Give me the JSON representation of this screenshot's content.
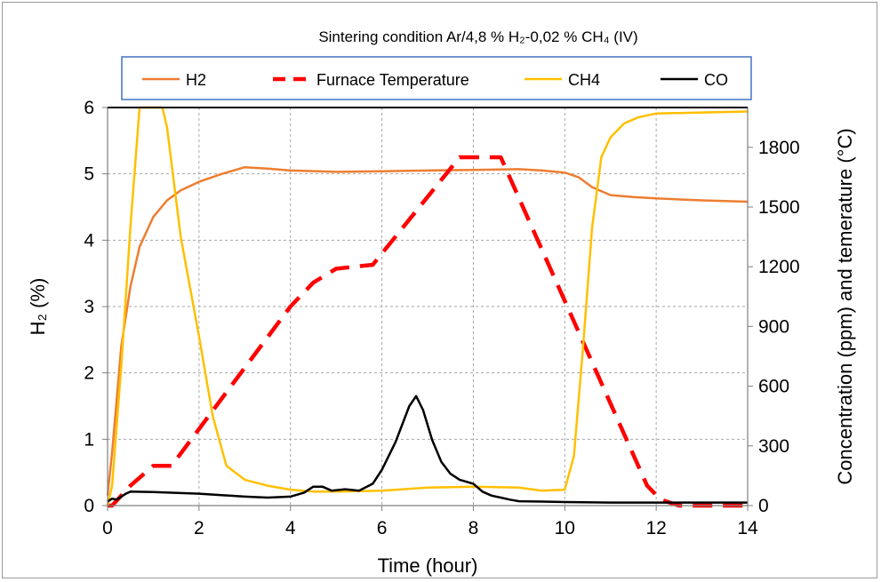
{
  "chart_data": {
    "type": "line",
    "title": "Sintering condition Ar/4,8 % H₂-0,02 % CH₄ (IV)",
    "xlabel": "Time (hour)",
    "ylabel_left": "H₂ (%)",
    "ylabel_right": "Concentration (ppm) and temerature (°C)",
    "xlim": [
      0,
      14
    ],
    "ylim_left": [
      0,
      6
    ],
    "ylim_right": [
      0,
      2000
    ],
    "xticks": [
      0,
      2,
      4,
      6,
      8,
      10,
      12,
      14
    ],
    "yticks_left": [
      0,
      1,
      2,
      3,
      4,
      5,
      6
    ],
    "yticks_right": [
      0,
      300,
      600,
      900,
      1200,
      1500,
      1800
    ],
    "grid": true,
    "legend_position": "top",
    "series": [
      {
        "name": "H2",
        "axis": "left",
        "color": "#ED7D31",
        "style": "solid",
        "x": [
          0,
          0.1,
          0.2,
          0.3,
          0.5,
          0.7,
          1.0,
          1.3,
          1.6,
          2.0,
          2.5,
          3.0,
          3.5,
          4.0,
          5.0,
          6.0,
          7.0,
          8.0,
          9.0,
          9.5,
          10.0,
          10.3,
          10.6,
          11.0,
          11.5,
          12.0,
          13.0,
          14.0
        ],
        "y": [
          0.15,
          0.8,
          1.6,
          2.4,
          3.3,
          3.9,
          4.35,
          4.6,
          4.75,
          4.88,
          5.0,
          5.1,
          5.08,
          5.05,
          5.03,
          5.04,
          5.05,
          5.06,
          5.07,
          5.05,
          5.02,
          4.95,
          4.8,
          4.68,
          4.65,
          4.63,
          4.6,
          4.58
        ]
      },
      {
        "name": "Furnace Temperature",
        "axis": "right",
        "color": "#FF0000",
        "style": "dashed",
        "x": [
          0,
          0.1,
          0.5,
          1.0,
          1.4,
          4.0,
          4.5,
          5.0,
          5.8,
          7.7,
          8.6,
          11.8,
          12.1,
          12.5,
          14.0
        ],
        "y": [
          0,
          0,
          100,
          200,
          200,
          1000,
          1120,
          1190,
          1210,
          1750,
          1750,
          100,
          30,
          0,
          0
        ]
      },
      {
        "name": "CH4",
        "axis": "right",
        "color": "#FFC000",
        "style": "solid",
        "x": [
          0,
          0.1,
          0.3,
          0.5,
          0.7,
          0.8,
          1.2,
          1.3,
          1.6,
          2.0,
          2.3,
          2.6,
          3.0,
          3.5,
          4.0,
          4.5,
          5.0,
          6.0,
          7.0,
          8.0,
          9.0,
          9.5,
          10.0,
          10.2,
          10.4,
          10.6,
          10.8,
          11.0,
          11.3,
          11.6,
          12.0,
          13.0,
          14.0
        ],
        "y": [
          0,
          100,
          700,
          1400,
          2000,
          2000,
          2000,
          1900,
          1350,
          850,
          450,
          200,
          130,
          100,
          80,
          70,
          70,
          75,
          90,
          95,
          90,
          75,
          80,
          250,
          800,
          1400,
          1750,
          1850,
          1920,
          1950,
          1970,
          1975,
          1980
        ]
      },
      {
        "name": "CO",
        "axis": "right",
        "color": "#000000",
        "style": "solid",
        "x": [
          0,
          0.1,
          0.2,
          0.4,
          0.5,
          1.0,
          2.0,
          3.0,
          3.5,
          4.0,
          4.3,
          4.5,
          4.7,
          4.9,
          5.2,
          5.5,
          5.8,
          6.0,
          6.3,
          6.6,
          6.75,
          6.9,
          7.1,
          7.3,
          7.5,
          7.7,
          8.0,
          8.2,
          8.4,
          8.6,
          8.8,
          9.0,
          9.5,
          10.0,
          11.0,
          12.0,
          13.0,
          14.0
        ],
        "y": [
          20,
          35,
          30,
          60,
          70,
          68,
          60,
          45,
          40,
          45,
          65,
          95,
          95,
          75,
          82,
          75,
          110,
          180,
          320,
          500,
          550,
          480,
          330,
          220,
          160,
          130,
          110,
          70,
          50,
          40,
          30,
          22,
          20,
          18,
          15,
          15,
          15,
          15
        ]
      }
    ]
  }
}
